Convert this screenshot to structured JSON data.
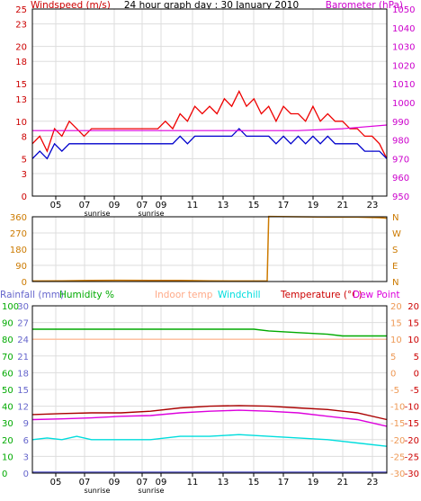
{
  "chart_data": [
    {
      "type": "line",
      "title": "24 hour graph day : 30 January 2010",
      "header_left": "Windspeed (m/s)",
      "header_right": "Barometer (hPa)",
      "x_ticks": [
        "05",
        "07",
        "09",
        "07",
        "09",
        "11",
        "13",
        "15",
        "17",
        "19",
        "21",
        "23"
      ],
      "x_annotations": [
        "sunrise",
        "sunrise"
      ],
      "y_left_ticks": [
        "0",
        "3",
        "5",
        "8",
        "10",
        "13",
        "15",
        "18",
        "20",
        "23",
        "25"
      ],
      "y_left_range": [
        0,
        25
      ],
      "y_right_ticks": [
        "950",
        "960",
        "970",
        "980",
        "990",
        "1000",
        "1010",
        "1020",
        "1030",
        "1040",
        "1050"
      ],
      "y_right_range": [
        950,
        1050
      ],
      "grid": true,
      "series": [
        {
          "name": "Windspeed",
          "axis": "left",
          "color": "#ee0000",
          "x": [
            0,
            0.5,
            1,
            1.5,
            2,
            2.5,
            3,
            3.5,
            4,
            4.5,
            5,
            5.5,
            6,
            6.5,
            7,
            7.5,
            8,
            8.5,
            9,
            9.5,
            10,
            10.5,
            11,
            11.5,
            12,
            12.5,
            13,
            13.5,
            14,
            14.5,
            15,
            15.5,
            16,
            16.5,
            17,
            17.5,
            18,
            18.5,
            19,
            19.5,
            20,
            20.5,
            21,
            21.5,
            22,
            22.5,
            23,
            23.5,
            24
          ],
          "values": [
            7,
            8,
            6,
            9,
            8,
            10,
            9,
            8,
            9,
            9,
            9,
            9,
            9,
            9,
            9,
            9,
            9,
            9,
            10,
            9,
            11,
            10,
            12,
            11,
            12,
            11,
            13,
            12,
            14,
            12,
            13,
            11,
            12,
            10,
            12,
            11,
            11,
            10,
            12,
            10,
            11,
            10,
            10,
            9,
            9,
            8,
            8,
            7,
            5
          ]
        },
        {
          "name": "Wind gust",
          "axis": "left",
          "color": "#0000cc",
          "x": [
            0,
            0.5,
            1,
            1.5,
            2,
            2.5,
            3,
            3.5,
            4,
            4.5,
            5,
            5.5,
            6,
            6.5,
            7,
            7.5,
            8,
            8.5,
            9,
            9.5,
            10,
            10.5,
            11,
            11.5,
            12,
            12.5,
            13,
            13.5,
            14,
            14.5,
            15,
            15.5,
            16,
            16.5,
            17,
            17.5,
            18,
            18.5,
            19,
            19.5,
            20,
            20.5,
            21,
            21.5,
            22,
            22.5,
            23,
            23.5,
            24
          ],
          "values": [
            5,
            6,
            5,
            7,
            6,
            7,
            7,
            7,
            7,
            7,
            7,
            7,
            7,
            7,
            7,
            7,
            7,
            7,
            7,
            7,
            8,
            7,
            8,
            8,
            8,
            8,
            8,
            8,
            9,
            8,
            8,
            8,
            8,
            7,
            8,
            7,
            8,
            7,
            8,
            7,
            8,
            7,
            7,
            7,
            7,
            6,
            6,
            6,
            5
          ]
        },
        {
          "name": "Barometer",
          "axis": "right",
          "color": "#dd00dd",
          "x": [
            0,
            3,
            6,
            9,
            12,
            15,
            18,
            21,
            24
          ],
          "values": [
            985,
            985,
            985,
            985,
            985,
            985,
            985,
            986,
            988
          ]
        }
      ]
    },
    {
      "type": "line",
      "title": "",
      "y_left_ticks": [
        "0",
        "90",
        "180",
        "270",
        "360"
      ],
      "y_left_range": [
        0,
        360
      ],
      "y_right_ticks": [
        "N",
        "E",
        "S",
        "W",
        "N"
      ],
      "grid": true,
      "series": [
        {
          "name": "Wind direction",
          "color": "#cc7a00",
          "x": [
            0,
            2,
            4,
            6,
            8,
            10,
            12,
            14,
            15.9,
            16,
            18,
            20,
            22,
            23.5,
            24
          ],
          "values": [
            3,
            4,
            6,
            7,
            6,
            6,
            4,
            3,
            3,
            362,
            360,
            358,
            358,
            355,
            352
          ]
        }
      ]
    },
    {
      "type": "line",
      "title": "",
      "header_labels": [
        "Rainfall (mm)",
        "Humidity %",
        "Indoor temp",
        "Windchill",
        "Temperature (°C)",
        "Dew Point"
      ],
      "header_colors": [
        "#6666cc",
        "#00aa00",
        "#ffaa88",
        "#00dddd",
        "#cc0000",
        "#dd00dd"
      ],
      "y_left_outer_ticks": [
        "0",
        "10",
        "20",
        "30",
        "40",
        "50",
        "60",
        "70",
        "80",
        "90",
        "100"
      ],
      "y_left_inner_ticks": [
        "0",
        "3",
        "6",
        "9",
        "12",
        "15",
        "18",
        "21",
        "24",
        "27",
        "30"
      ],
      "y_right_inner_ticks": [
        "-30",
        "-25",
        "-20",
        "-15",
        "-10",
        "-5",
        "0",
        "5",
        "10",
        "15",
        "20"
      ],
      "y_right_outer_ticks": [
        "-30",
        "-25",
        "-20",
        "-15",
        "-10",
        "-5",
        "0",
        "5",
        "10",
        "15",
        "20"
      ],
      "y_range_temp": [
        -30,
        20
      ],
      "grid": true,
      "series": [
        {
          "name": "Humidity",
          "axis": "humidity",
          "color": "#00aa00",
          "x": [
            0,
            4,
            8,
            12,
            15,
            16,
            18,
            20,
            21,
            22,
            24
          ],
          "values": [
            86,
            86,
            86,
            86,
            86,
            85,
            84,
            83,
            82,
            82,
            82
          ]
        },
        {
          "name": "Indoor temp",
          "axis": "temp",
          "color": "#ffbb99",
          "x": [
            0,
            4,
            8,
            12,
            16,
            20,
            24
          ],
          "values": [
            10,
            10,
            10,
            10,
            10,
            10,
            10
          ]
        },
        {
          "name": "Temperature",
          "axis": "temp",
          "color": "#aa0000",
          "x": [
            0,
            2,
            4,
            6,
            8,
            10,
            12,
            14,
            16,
            18,
            20,
            22,
            24
          ],
          "values": [
            -12.5,
            -12.2,
            -12,
            -12,
            -11.5,
            -10.5,
            -10,
            -9.8,
            -10,
            -10.5,
            -11,
            -12,
            -14
          ]
        },
        {
          "name": "Dew Point",
          "axis": "temp",
          "color": "#dd00dd",
          "x": [
            0,
            2,
            4,
            6,
            8,
            10,
            12,
            14,
            16,
            18,
            20,
            22,
            24
          ],
          "values": [
            -14,
            -13.8,
            -13.5,
            -13,
            -12.8,
            -12,
            -11.5,
            -11.2,
            -11.5,
            -12,
            -13,
            -14,
            -16
          ]
        },
        {
          "name": "Windchill",
          "axis": "temp",
          "color": "#00dddd",
          "x": [
            0,
            1,
            2,
            3,
            4,
            6,
            8,
            10,
            12,
            14,
            16,
            18,
            20,
            22,
            24
          ],
          "values": [
            -20,
            -19.5,
            -20,
            -19,
            -20,
            -20,
            -20,
            -19,
            -19,
            -18.5,
            -19,
            -19.5,
            -20,
            -21,
            -22
          ]
        },
        {
          "name": "Rainfall",
          "axis": "rain",
          "color": "#6666cc",
          "x": [
            0,
            24
          ],
          "values": [
            0.2,
            0.2
          ]
        }
      ]
    }
  ]
}
